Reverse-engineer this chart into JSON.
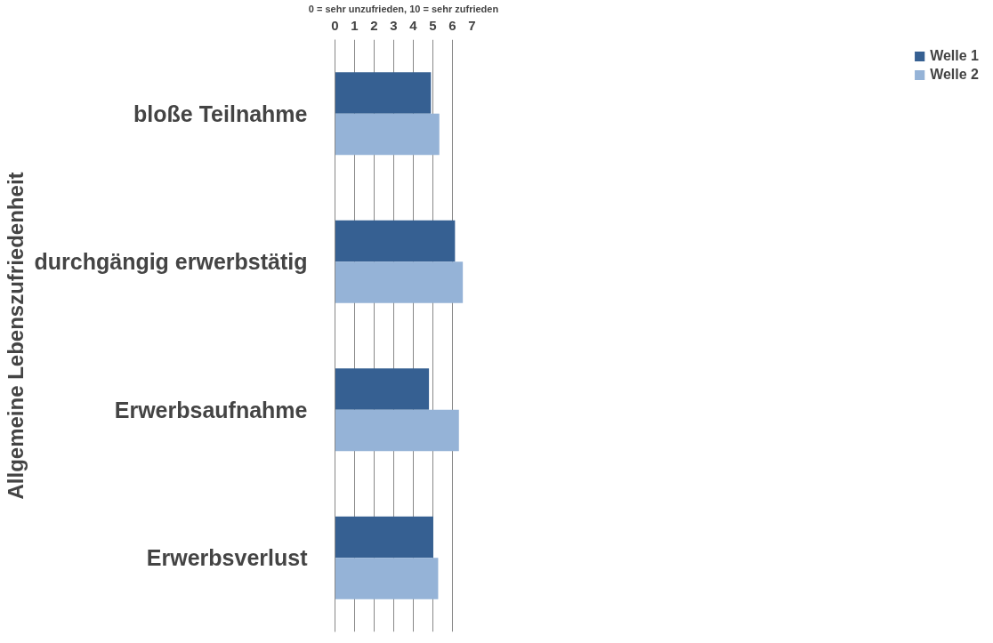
{
  "chart_data": {
    "type": "bar",
    "orientation": "horizontal",
    "xlabel": "0 = sehr unzufrieden, 10 = sehr zufrieden",
    "ylabel": "Allgemeine Lebenszufriedenheit",
    "categories": [
      "bloße Teilnahme",
      "durchgängig erwerbstätig",
      "Erwerbsaufnahme",
      "Erwerbsverlust"
    ],
    "series": [
      {
        "name": "Welle 1",
        "color": "#366092",
        "values": [
          4.9,
          6.13,
          4.8,
          5.02
        ]
      },
      {
        "name": "Welle 2",
        "color": "#95b3d7",
        "values": [
          5.33,
          6.53,
          6.33,
          5.27
        ]
      }
    ],
    "xlim": [
      0,
      7
    ],
    "xticks": [
      0,
      1,
      2,
      3,
      4,
      5,
      6,
      7
    ],
    "grid": "x",
    "legend": "right"
  }
}
